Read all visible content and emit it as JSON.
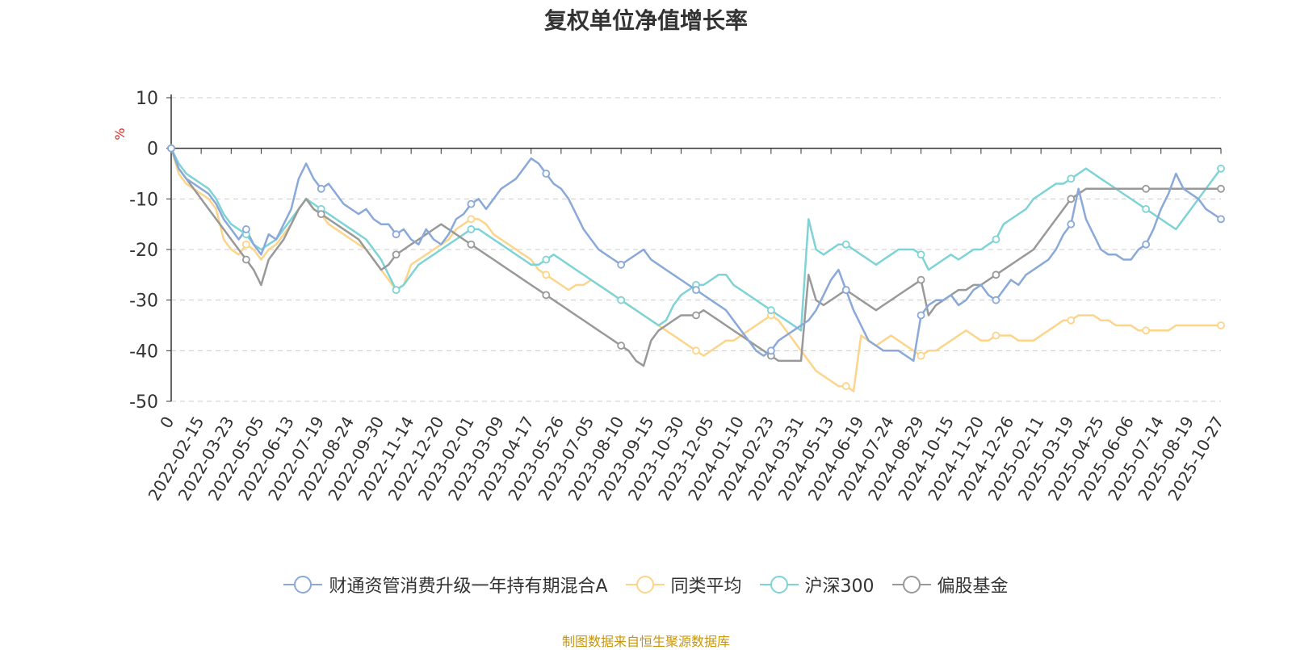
{
  "chart_data": {
    "type": "line",
    "title": "复权单位净值增长率",
    "ylabel": "%",
    "ylim": [
      -50,
      10
    ],
    "yticks": [
      10,
      0,
      -10,
      -20,
      -30,
      -40,
      -50
    ],
    "ytick_labels": [
      "10",
      "0",
      "-10",
      "-20",
      "-30",
      "-40",
      "-50"
    ],
    "x_start_label": "0",
    "xtick_labels": [
      "2022-02-15",
      "2022-03-23",
      "2022-05-05",
      "2022-06-13",
      "2022-07-19",
      "2022-08-24",
      "2022-09-30",
      "2022-11-14",
      "2022-12-20",
      "2023-02-01",
      "2023-03-09",
      "2023-04-17",
      "2023-05-26",
      "2023-07-05",
      "2023-08-10",
      "2023-09-15",
      "2023-10-30",
      "2023-12-05",
      "2024-01-10",
      "2024-02-23",
      "2024-03-31",
      "2024-05-13",
      "2024-06-19",
      "2024-07-24",
      "2024-08-29",
      "2024-10-15",
      "2024-11-20",
      "2024-12-26",
      "2025-02-11",
      "2025-03-19",
      "2025-04-25",
      "2025-06-06",
      "2025-07-14",
      "2025-08-19",
      "2025-10-27"
    ],
    "x": [
      0,
      1,
      2,
      3,
      4,
      5,
      6,
      7,
      8,
      9,
      10,
      11,
      12,
      13,
      14,
      15,
      16,
      17,
      18,
      19,
      20,
      21,
      22,
      23,
      24,
      25,
      26,
      27,
      28,
      29,
      30,
      31,
      32,
      33,
      34,
      35,
      36,
      37,
      38,
      39,
      40,
      41,
      42,
      43,
      44,
      45,
      46,
      47,
      48,
      49,
      50,
      51,
      52,
      53,
      54,
      55,
      56,
      57,
      58,
      59,
      60,
      61,
      62,
      63,
      64,
      65,
      66,
      67,
      68,
      69,
      70,
      71,
      72,
      73,
      74,
      75,
      76,
      77,
      78,
      79,
      80,
      81,
      82,
      83,
      84,
      85,
      86,
      87,
      88,
      89,
      90,
      91,
      92,
      93,
      94,
      95,
      96,
      97,
      98,
      99,
      100,
      101,
      102,
      103,
      104,
      105,
      106,
      107,
      108,
      109,
      110,
      111,
      112,
      113,
      114,
      115,
      116,
      117,
      118,
      119,
      120,
      121,
      122,
      123,
      124,
      125,
      126,
      127,
      128,
      129,
      130,
      131,
      132,
      133,
      134,
      135,
      136,
      137,
      138,
      139,
      140
    ],
    "series": [
      {
        "name": "财通资管消费升级一年持有期混合A",
        "color": "#8aa8d8",
        "values": [
          0,
          -4,
          -6,
          -7,
          -8,
          -9,
          -11,
          -14,
          -16,
          -18,
          -16,
          -19,
          -21,
          -17,
          -18,
          -15,
          -12,
          -6,
          -3,
          -6,
          -8,
          -7,
          -9,
          -11,
          -12,
          -13,
          -12,
          -14,
          -15,
          -15,
          -17,
          -16,
          -18,
          -19,
          -16,
          -18,
          -19,
          -17,
          -14,
          -13,
          -11,
          -10,
          -12,
          -10,
          -8,
          -7,
          -6,
          -4,
          -2,
          -3,
          -5,
          -7,
          -8,
          -10,
          -13,
          -16,
          -18,
          -20,
          -21,
          -22,
          -23,
          -22,
          -21,
          -20,
          -22,
          -23,
          -24,
          -25,
          -26,
          -27,
          -28,
          -29,
          -30,
          -31,
          -32,
          -34,
          -36,
          -38,
          -40,
          -41,
          -40,
          -38,
          -37,
          -36,
          -35,
          -34,
          -32,
          -29,
          -26,
          -24,
          -28,
          -32,
          -35,
          -38,
          -39,
          -40,
          -40,
          -40,
          -41,
          -42,
          -33,
          -31,
          -30,
          -30,
          -29,
          -31,
          -30,
          -28,
          -27,
          -29,
          -30,
          -28,
          -26,
          -27,
          -25,
          -24,
          -23,
          -22,
          -20,
          -17,
          -15,
          -8,
          -14,
          -17,
          -20,
          -21,
          -21,
          -22,
          -22,
          -20,
          -19,
          -16,
          -12,
          -9,
          -5,
          -8,
          -9,
          -10,
          -12,
          -13,
          -14
        ]
      },
      {
        "name": "同类平均",
        "color": "#fcd48a",
        "values": [
          0,
          -5,
          -7,
          -8,
          -9,
          -10,
          -12,
          -18,
          -20,
          -21,
          -19,
          -20,
          -22,
          -20,
          -19,
          -17,
          -15,
          -12,
          -10,
          -12,
          -13,
          -15,
          -16,
          -17,
          -18,
          -19,
          -20,
          -22,
          -24,
          -26,
          -28,
          -27,
          -23,
          -22,
          -21,
          -20,
          -19,
          -18,
          -16,
          -15,
          -14,
          -14,
          -15,
          -17,
          -18,
          -19,
          -20,
          -21,
          -22,
          -24,
          -25,
          -26,
          -27,
          -28,
          -27,
          -27,
          -26,
          -27,
          -28,
          -29,
          -30,
          -31,
          -32,
          -33,
          -34,
          -35,
          -36,
          -37,
          -38,
          -39,
          -40,
          -41,
          -40,
          -39,
          -38,
          -38,
          -37,
          -36,
          -35,
          -34,
          -33,
          -34,
          -36,
          -38,
          -40,
          -42,
          -44,
          -45,
          -46,
          -47,
          -47,
          -48,
          -37,
          -38,
          -39,
          -38,
          -37,
          -38,
          -39,
          -40,
          -41,
          -40,
          -40,
          -39,
          -38,
          -37,
          -36,
          -37,
          -38,
          -38,
          -37,
          -37,
          -37,
          -38,
          -38,
          -38,
          -37,
          -36,
          -35,
          -34,
          -34,
          -33,
          -33,
          -33,
          -34,
          -34,
          -35,
          -35,
          -35,
          -36,
          -36,
          -36,
          -36,
          -36,
          -35,
          -35,
          -35,
          -35,
          -35,
          -35,
          -35
        ]
      },
      {
        "name": "沪深300",
        "color": "#7ed3d6",
        "values": [
          0,
          -3,
          -5,
          -6,
          -7,
          -8,
          -10,
          -13,
          -15,
          -16,
          -17,
          -19,
          -20,
          -19,
          -18,
          -16,
          -14,
          -12,
          -10,
          -11,
          -12,
          -13,
          -14,
          -15,
          -16,
          -17,
          -18,
          -20,
          -22,
          -25,
          -28,
          -27,
          -25,
          -23,
          -22,
          -21,
          -20,
          -19,
          -18,
          -17,
          -16,
          -16,
          -17,
          -18,
          -19,
          -20,
          -21,
          -22,
          -23,
          -23,
          -22,
          -21,
          -22,
          -23,
          -24,
          -25,
          -26,
          -27,
          -28,
          -29,
          -30,
          -31,
          -32,
          -33,
          -34,
          -35,
          -34,
          -31,
          -29,
          -28,
          -27,
          -27,
          -26,
          -25,
          -25,
          -27,
          -28,
          -29,
          -30,
          -31,
          -32,
          -33,
          -34,
          -35,
          -36,
          -14,
          -20,
          -21,
          -20,
          -19,
          -19,
          -20,
          -21,
          -22,
          -23,
          -22,
          -21,
          -20,
          -20,
          -20,
          -21,
          -24,
          -23,
          -22,
          -21,
          -22,
          -21,
          -20,
          -20,
          -19,
          -18,
          -15,
          -14,
          -13,
          -12,
          -10,
          -9,
          -8,
          -7,
          -7,
          -6,
          -5,
          -4,
          -5,
          -6,
          -7,
          -8,
          -9,
          -10,
          -11,
          -12,
          -13,
          -14,
          -15,
          -16,
          -14,
          -12,
          -10,
          -8,
          -6,
          -4
        ]
      },
      {
        "name": "偏股基金",
        "color": "#999999",
        "values": [
          0,
          -4,
          -6,
          -8,
          -10,
          -12,
          -14,
          -16,
          -18,
          -20,
          -22,
          -24,
          -27,
          -22,
          -20,
          -18,
          -15,
          -12,
          -10,
          -12,
          -13,
          -14,
          -15,
          -16,
          -17,
          -18,
          -20,
          -22,
          -24,
          -23,
          -21,
          -20,
          -19,
          -18,
          -17,
          -16,
          -15,
          -16,
          -17,
          -18,
          -19,
          -20,
          -21,
          -22,
          -23,
          -24,
          -25,
          -26,
          -27,
          -28,
          -29,
          -30,
          -31,
          -32,
          -33,
          -34,
          -35,
          -36,
          -37,
          -38,
          -39,
          -40,
          -42,
          -43,
          -38,
          -36,
          -35,
          -34,
          -33,
          -33,
          -33,
          -32,
          -33,
          -34,
          -35,
          -36,
          -37,
          -38,
          -39,
          -40,
          -41,
          -42,
          -42,
          -42,
          -42,
          -25,
          -30,
          -31,
          -30,
          -29,
          -28,
          -29,
          -30,
          -31,
          -32,
          -31,
          -30,
          -29,
          -28,
          -27,
          -26,
          -33,
          -31,
          -30,
          -29,
          -28,
          -28,
          -27,
          -27,
          -26,
          -25,
          -24,
          -23,
          -22,
          -21,
          -20,
          -18,
          -16,
          -14,
          -12,
          -10,
          -9,
          -8,
          -8,
          -8,
          -8,
          -8,
          -8,
          -8,
          -8,
          -8,
          -8,
          -8,
          -8,
          -8,
          -8,
          -8,
          -8,
          -8,
          -8,
          -8
        ]
      }
    ]
  },
  "legend": {
    "items": [
      {
        "label": "财通资管消费升级一年持有期混合A",
        "color": "#8aa8d8"
      },
      {
        "label": "同类平均",
        "color": "#fcd48a"
      },
      {
        "label": "沪深300",
        "color": "#7ed3d6"
      },
      {
        "label": "偏股基金",
        "color": "#999999"
      }
    ]
  },
  "source_note": "制图数据来自恒生聚源数据库"
}
